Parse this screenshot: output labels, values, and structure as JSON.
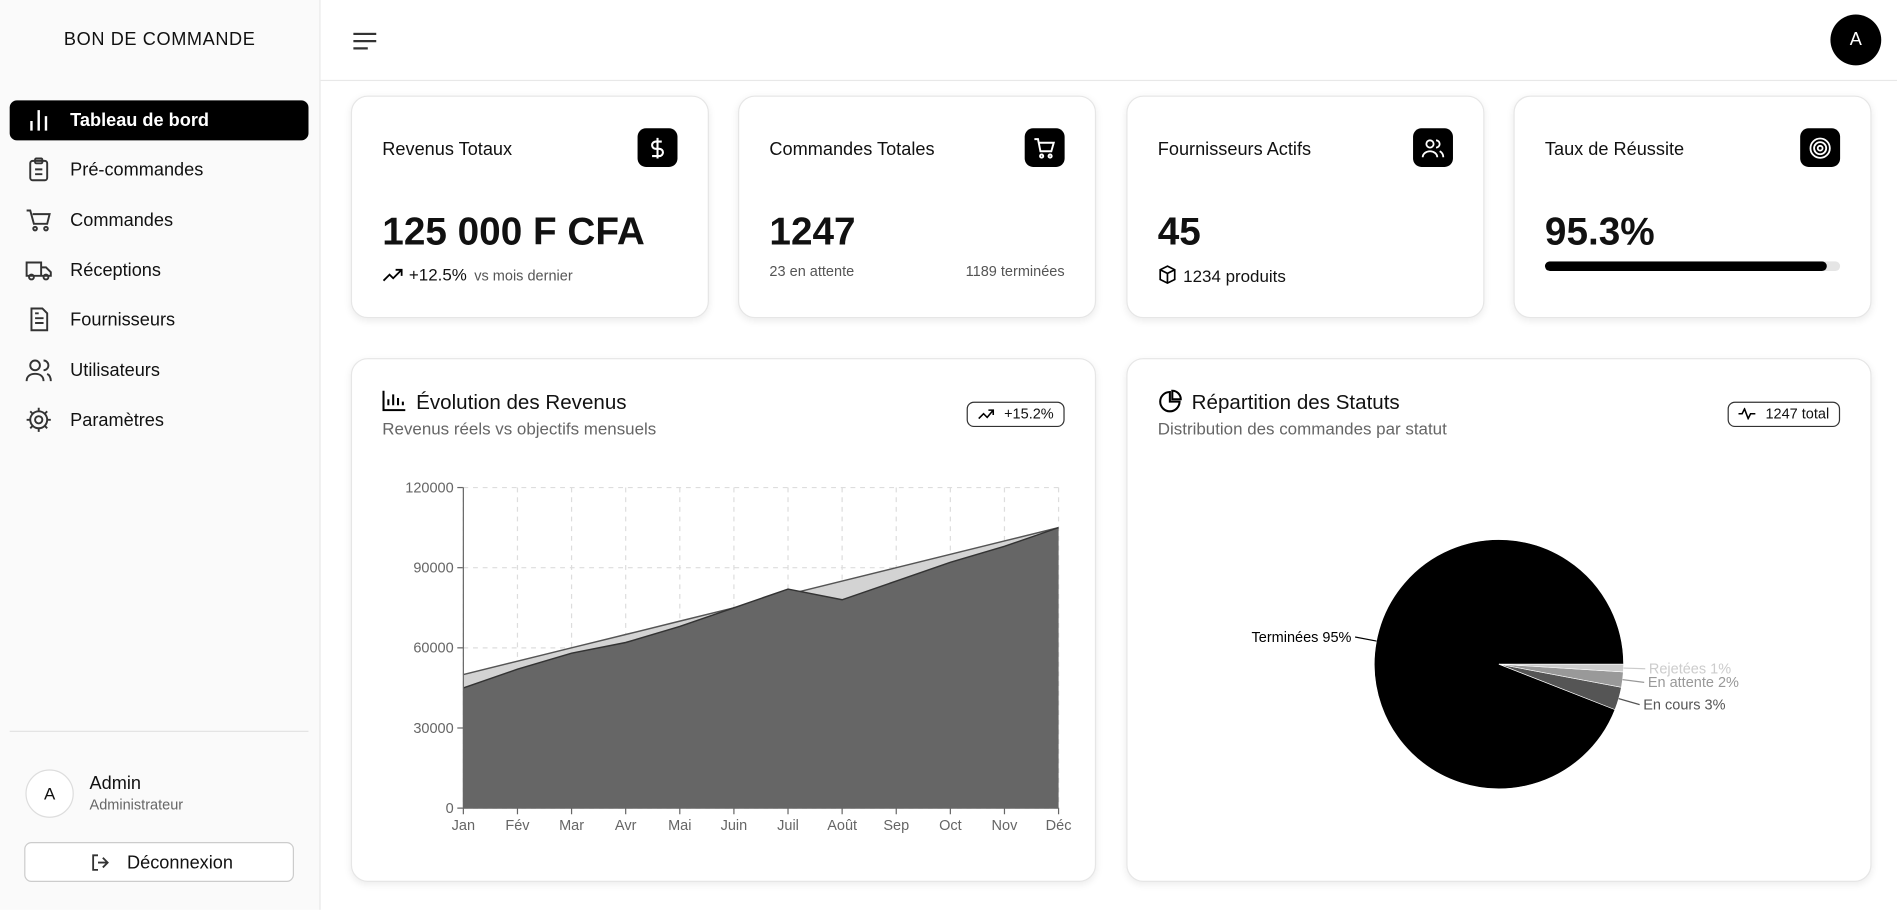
{
  "sidebar": {
    "brand": "BON DE COMMANDE",
    "nav": [
      "Tableau de bord",
      "Pré-commandes",
      "Commandes",
      "Réceptions",
      "Fournisseurs",
      "Utilisateurs",
      "Paramètres"
    ],
    "user": {
      "avatar": "A",
      "name": "Admin",
      "role": "Administrateur"
    },
    "logout": "Déconnexion"
  },
  "header": {
    "avatar": "A"
  },
  "stats": [
    {
      "title": "Revenus Totaux",
      "value": "125 000 F CFA",
      "change": "+12.5%",
      "note": "vs mois dernier"
    },
    {
      "title": "Commandes Totales",
      "value": "1247",
      "pending": "23 en attente",
      "done": "1189 terminées"
    },
    {
      "title": "Fournisseurs Actifs",
      "value": "45",
      "note": "1234 produits"
    },
    {
      "title": "Taux de Réussite",
      "value": {
        "value": 95.3,
        "label": "95.3%"
      }
    }
  ],
  "chart_data": [
    {
      "type": "area",
      "title": "Évolution des Revenus",
      "subtitle": "Revenus réels vs objectifs mensuels",
      "badge": "+15.2%",
      "categories": [
        "Jan",
        "Fév",
        "Mar",
        "Avr",
        "Mai",
        "Juin",
        "Juil",
        "Août",
        "Sep",
        "Oct",
        "Nov",
        "Déc"
      ],
      "series": [
        {
          "color": "#d3d3d3",
          "values": [
            50000,
            55000,
            60000,
            65000,
            70000,
            75000,
            80000,
            85000,
            90000,
            95000,
            100000,
            105000
          ]
        },
        {
          "color": "#666666",
          "values": [
            45000,
            52000,
            58000,
            62000,
            68000,
            75000,
            82000,
            78000,
            85000,
            92000,
            98000,
            105000
          ]
        }
      ],
      "ylim": [
        0,
        120000
      ],
      "yticks": [
        0,
        30000,
        60000,
        90000,
        120000
      ],
      "grid": true
    },
    {
      "type": "pie",
      "title": "Répartition des Statuts",
      "subtitle": "Distribution des commandes par statut",
      "badge": "1247 total",
      "values": [
        95,
        3,
        2,
        1
      ],
      "value_labels": [
        "Terminées 95%",
        "En cours 3%",
        "En attente 2%",
        "Rejetées 1%"
      ],
      "colors": [
        "#000000",
        "#555555",
        "#999999",
        "#cccccc"
      ]
    }
  ]
}
